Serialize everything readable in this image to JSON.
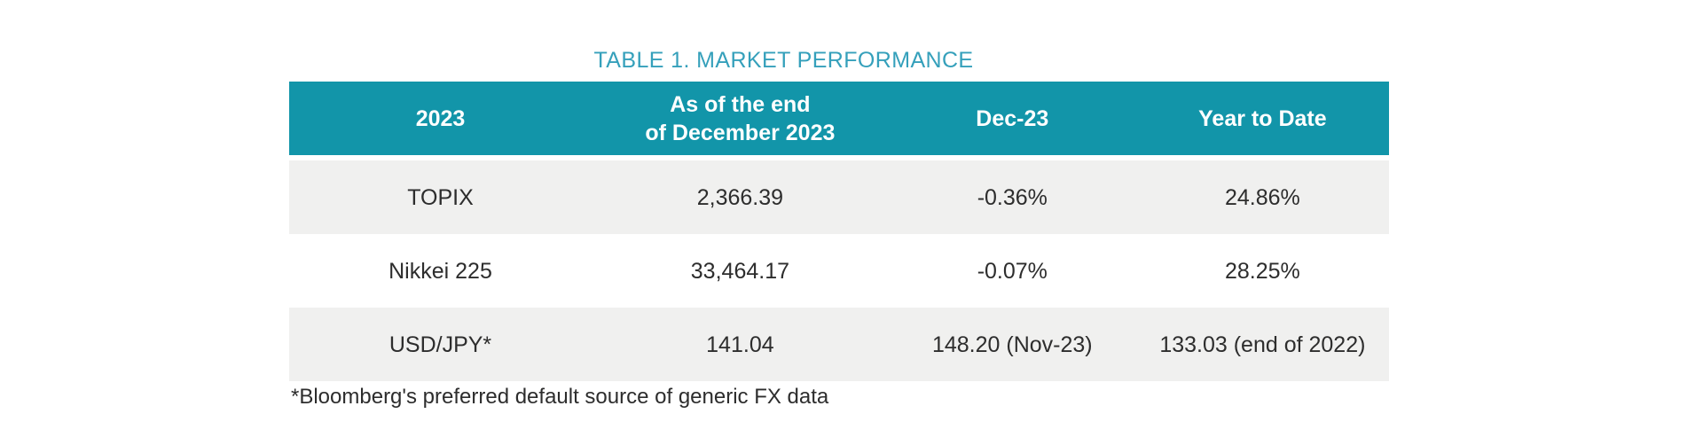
{
  "title": "TABLE 1. MARKET PERFORMANCE",
  "colors": {
    "header_bg": "#1295A9",
    "title_text": "#35A0BB",
    "row_alt_bg": "#F0F0EF",
    "body_text": "#2D2D2D"
  },
  "table": {
    "headers": [
      "2023",
      "As of the end\nof December 2023",
      "Dec-23",
      "Year to Date"
    ],
    "rows": [
      {
        "cells": [
          "TOPIX",
          "2,366.39",
          "-0.36%",
          "24.86%"
        ]
      },
      {
        "cells": [
          "Nikkei 225",
          "33,464.17",
          "-0.07%",
          "28.25%"
        ]
      },
      {
        "cells": [
          "USD/JPY*",
          "141.04",
          "148.20 (Nov-23)",
          "133.03 (end of 2022)"
        ]
      }
    ]
  },
  "footnote": "*Bloomberg's preferred default source of generic FX data"
}
